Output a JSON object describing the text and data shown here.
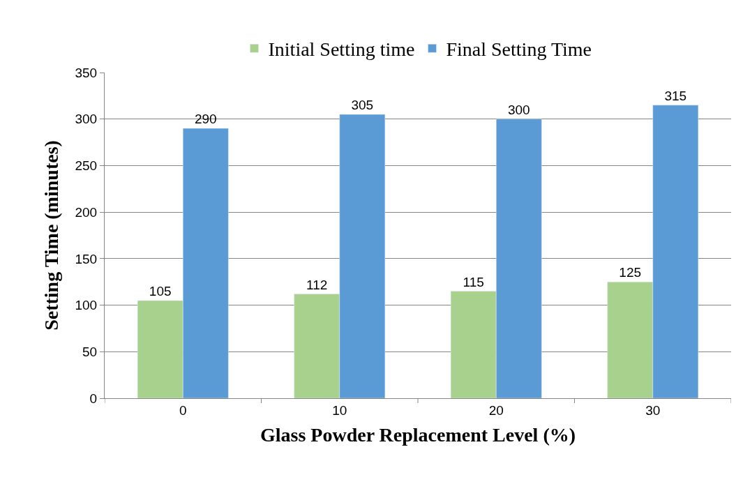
{
  "chart_data": {
    "type": "bar",
    "xlabel": "Glass Powder Replacement Level (%)",
    "ylabel": "Setting Time (minutes)",
    "categories": [
      "0",
      "10",
      "20",
      "30"
    ],
    "series": [
      {
        "name": "Initial Setting time",
        "color": "#a9d18e",
        "values": [
          105,
          112,
          115,
          125
        ]
      },
      {
        "name": "Final Setting Time",
        "color": "#5b9bd5",
        "values": [
          290,
          305,
          300,
          315
        ]
      }
    ],
    "ylim": [
      0,
      350
    ],
    "yticks": [
      0,
      50,
      100,
      150,
      200,
      250,
      300,
      350
    ],
    "grid": "y",
    "legend": "top",
    "data_labels": true
  }
}
